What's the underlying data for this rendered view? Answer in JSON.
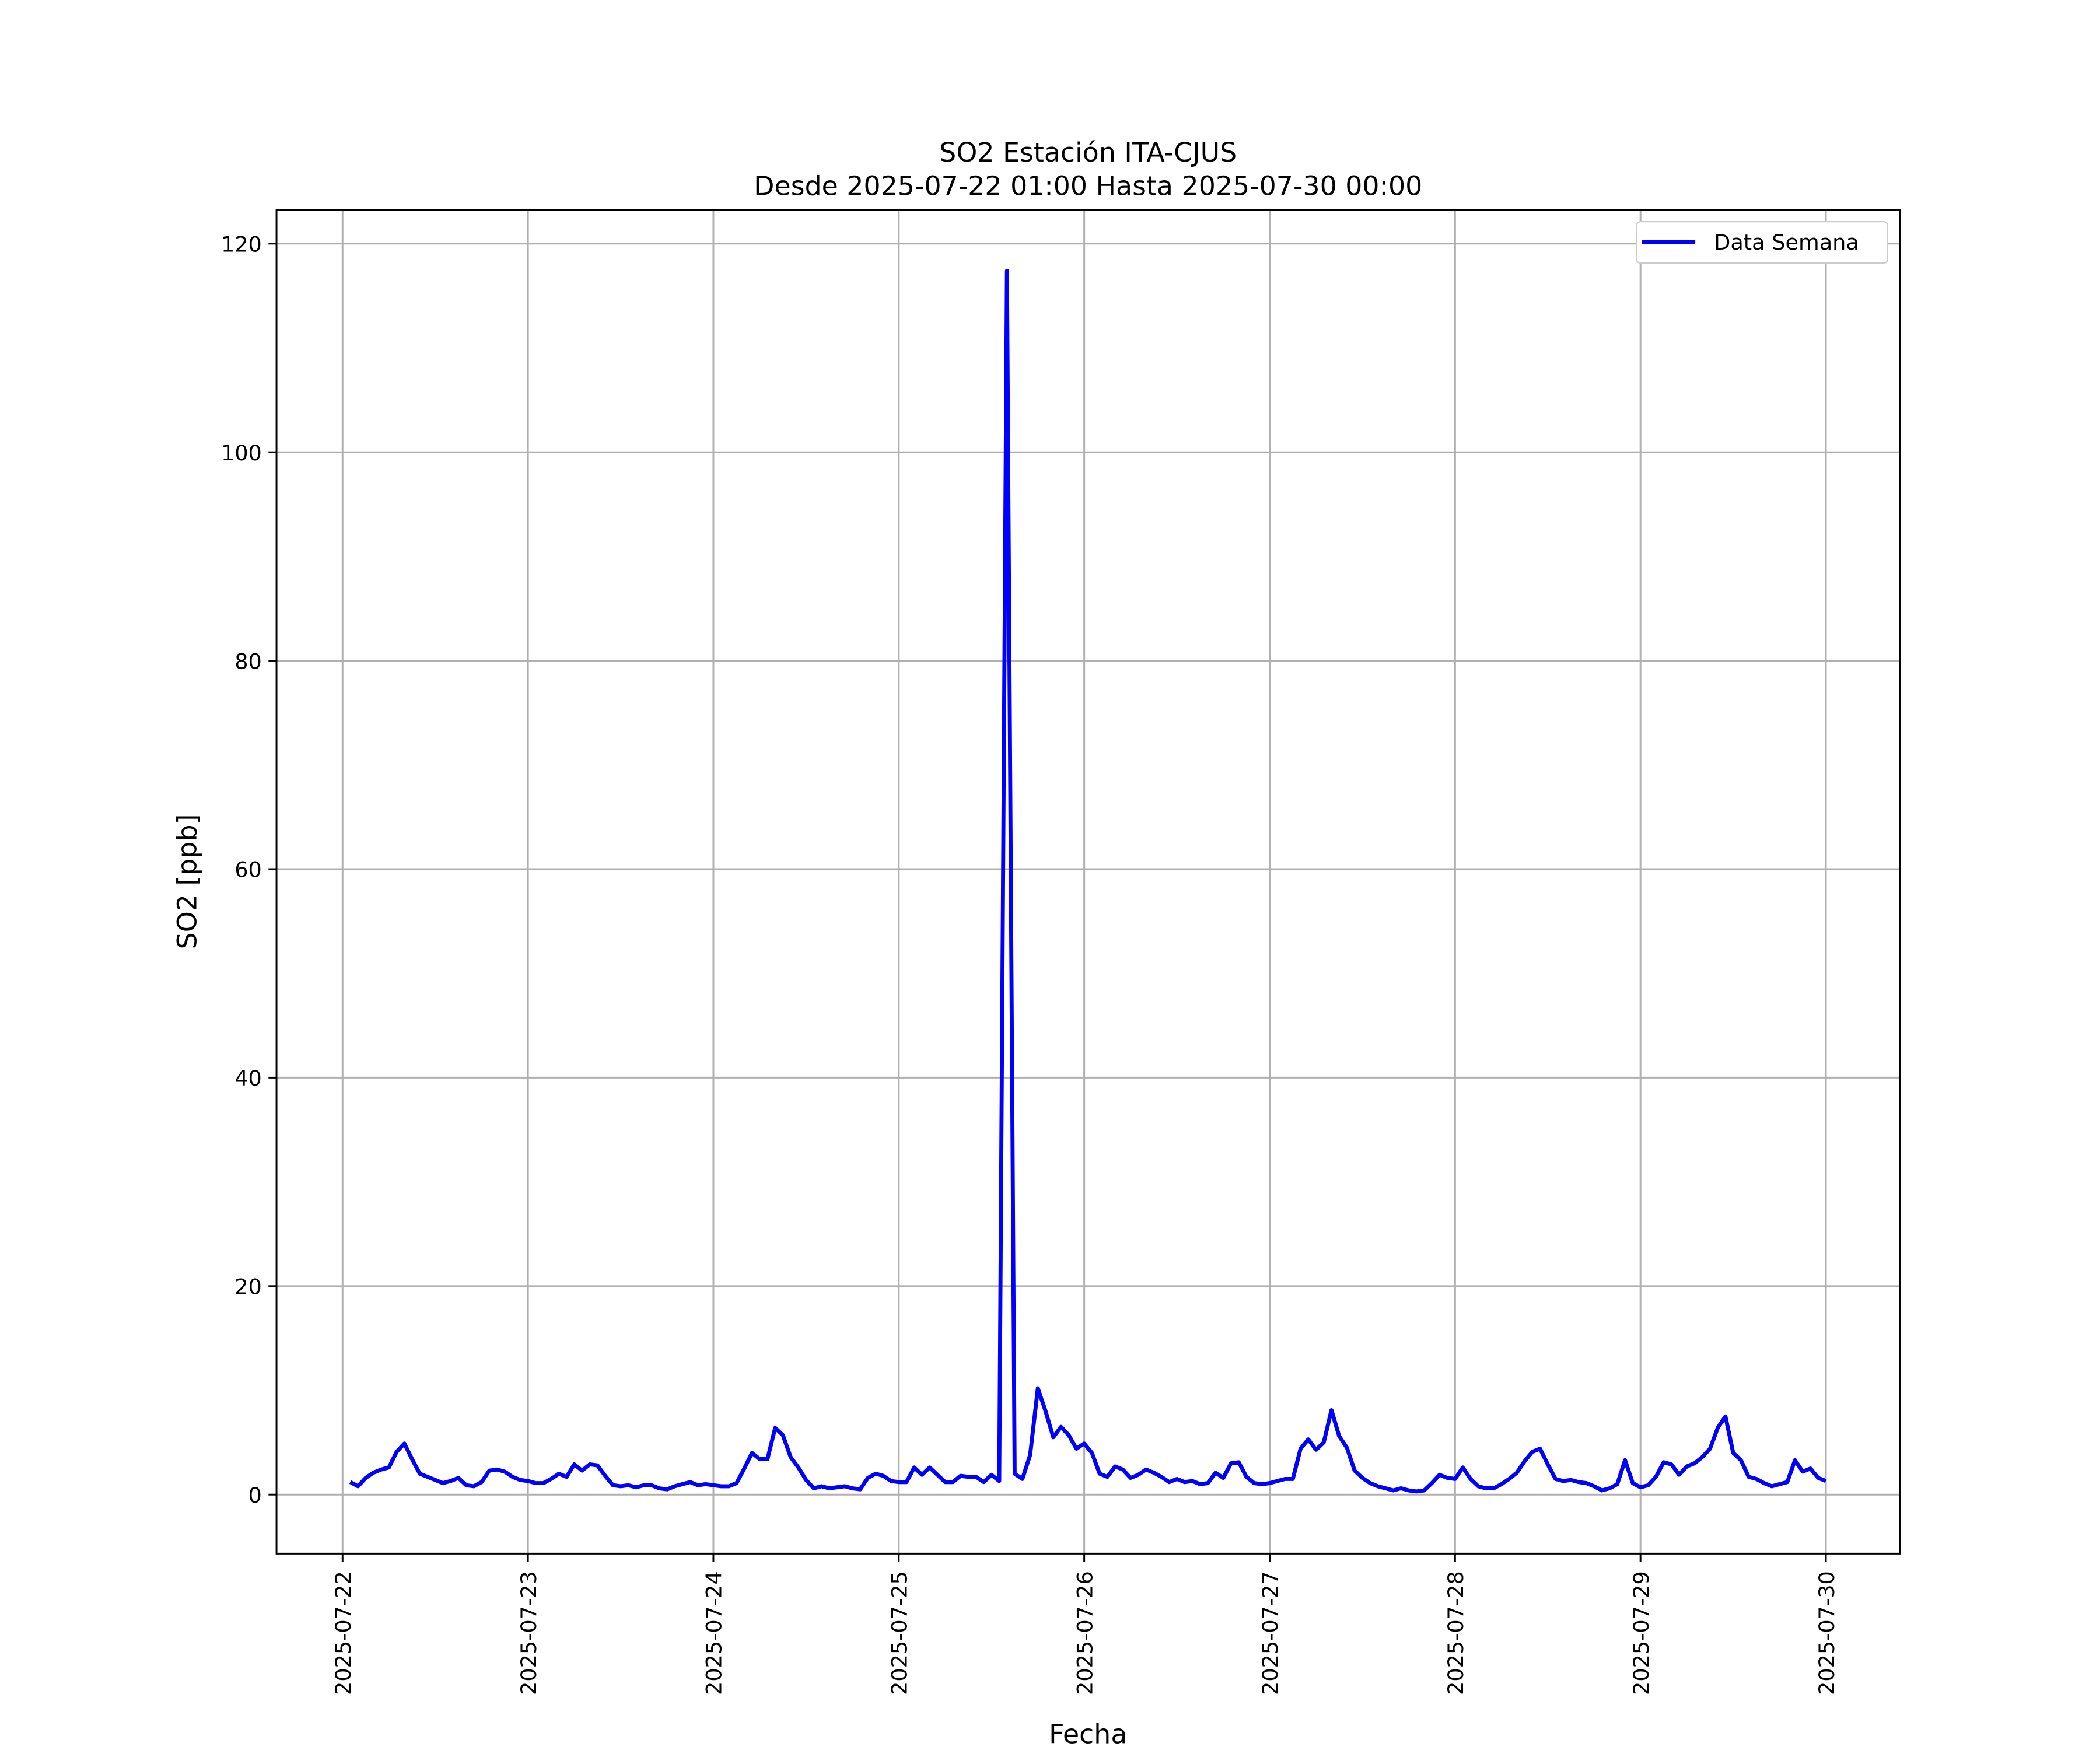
{
  "chart_data": {
    "type": "line",
    "title": "SO2 Estación ITA-CJUS",
    "subtitle": "Desde 2025-07-22 01:00 Hasta 2025-07-30 00:00",
    "x_label": "Fecha",
    "y_label": "SO2 [ppb]",
    "x": [
      "2025-07-22 01:00",
      "2025-07-22 02:00",
      "2025-07-22 03:00",
      "2025-07-22 04:00",
      "2025-07-22 05:00",
      "2025-07-22 06:00",
      "2025-07-22 07:00",
      "2025-07-22 08:00",
      "2025-07-22 09:00",
      "2025-07-22 10:00",
      "2025-07-22 11:00",
      "2025-07-22 12:00",
      "2025-07-22 13:00",
      "2025-07-22 14:00",
      "2025-07-22 15:00",
      "2025-07-22 16:00",
      "2025-07-22 17:00",
      "2025-07-22 18:00",
      "2025-07-22 19:00",
      "2025-07-22 20:00",
      "2025-07-22 21:00",
      "2025-07-22 22:00",
      "2025-07-22 23:00",
      "2025-07-23 00:00",
      "2025-07-23 01:00",
      "2025-07-23 02:00",
      "2025-07-23 03:00",
      "2025-07-23 04:00",
      "2025-07-23 05:00",
      "2025-07-23 06:00",
      "2025-07-23 07:00",
      "2025-07-23 08:00",
      "2025-07-23 09:00",
      "2025-07-23 10:00",
      "2025-07-23 11:00",
      "2025-07-23 12:00",
      "2025-07-23 13:00",
      "2025-07-23 14:00",
      "2025-07-23 15:00",
      "2025-07-23 16:00",
      "2025-07-23 17:00",
      "2025-07-23 18:00",
      "2025-07-23 19:00",
      "2025-07-23 20:00",
      "2025-07-23 21:00",
      "2025-07-23 22:00",
      "2025-07-23 23:00",
      "2025-07-24 00:00",
      "2025-07-24 01:00",
      "2025-07-24 02:00",
      "2025-07-24 03:00",
      "2025-07-24 04:00",
      "2025-07-24 05:00",
      "2025-07-24 06:00",
      "2025-07-24 07:00",
      "2025-07-24 08:00",
      "2025-07-24 09:00",
      "2025-07-24 10:00",
      "2025-07-24 11:00",
      "2025-07-24 12:00",
      "2025-07-24 13:00",
      "2025-07-24 14:00",
      "2025-07-24 15:00",
      "2025-07-24 16:00",
      "2025-07-24 17:00",
      "2025-07-24 18:00",
      "2025-07-24 19:00",
      "2025-07-24 20:00",
      "2025-07-24 21:00",
      "2025-07-24 22:00",
      "2025-07-24 23:00",
      "2025-07-25 00:00",
      "2025-07-25 01:00",
      "2025-07-25 02:00",
      "2025-07-25 03:00",
      "2025-07-25 04:00",
      "2025-07-25 05:00",
      "2025-07-25 06:00",
      "2025-07-25 07:00",
      "2025-07-25 08:00",
      "2025-07-25 09:00",
      "2025-07-25 10:00",
      "2025-07-25 11:00",
      "2025-07-25 12:00",
      "2025-07-25 13:00",
      "2025-07-25 14:00",
      "2025-07-25 15:00",
      "2025-07-25 16:00",
      "2025-07-25 17:00",
      "2025-07-25 18:00",
      "2025-07-25 19:00",
      "2025-07-25 20:00",
      "2025-07-25 21:00",
      "2025-07-25 22:00",
      "2025-07-25 23:00",
      "2025-07-26 00:00",
      "2025-07-26 01:00",
      "2025-07-26 02:00",
      "2025-07-26 03:00",
      "2025-07-26 04:00",
      "2025-07-26 05:00",
      "2025-07-26 06:00",
      "2025-07-26 07:00",
      "2025-07-26 08:00",
      "2025-07-26 09:00",
      "2025-07-26 10:00",
      "2025-07-26 11:00",
      "2025-07-26 12:00",
      "2025-07-26 13:00",
      "2025-07-26 14:00",
      "2025-07-26 15:00",
      "2025-07-26 16:00",
      "2025-07-26 17:00",
      "2025-07-26 18:00",
      "2025-07-26 19:00",
      "2025-07-26 20:00",
      "2025-07-26 21:00",
      "2025-07-26 22:00",
      "2025-07-26 23:00",
      "2025-07-27 00:00",
      "2025-07-27 01:00",
      "2025-07-27 02:00",
      "2025-07-27 03:00",
      "2025-07-27 04:00",
      "2025-07-27 05:00",
      "2025-07-27 06:00",
      "2025-07-27 07:00",
      "2025-07-27 08:00",
      "2025-07-27 09:00",
      "2025-07-27 10:00",
      "2025-07-27 11:00",
      "2025-07-27 12:00",
      "2025-07-27 13:00",
      "2025-07-27 14:00",
      "2025-07-27 15:00",
      "2025-07-27 16:00",
      "2025-07-27 17:00",
      "2025-07-27 18:00",
      "2025-07-27 19:00",
      "2025-07-27 20:00",
      "2025-07-27 21:00",
      "2025-07-27 22:00",
      "2025-07-27 23:00",
      "2025-07-28 00:00",
      "2025-07-28 01:00",
      "2025-07-28 02:00",
      "2025-07-28 03:00",
      "2025-07-28 04:00",
      "2025-07-28 05:00",
      "2025-07-28 06:00",
      "2025-07-28 07:00",
      "2025-07-28 08:00",
      "2025-07-28 09:00",
      "2025-07-28 10:00",
      "2025-07-28 11:00",
      "2025-07-28 12:00",
      "2025-07-28 13:00",
      "2025-07-28 14:00",
      "2025-07-28 15:00",
      "2025-07-28 16:00",
      "2025-07-28 17:00",
      "2025-07-28 18:00",
      "2025-07-28 19:00",
      "2025-07-28 20:00",
      "2025-07-28 21:00",
      "2025-07-28 22:00",
      "2025-07-28 23:00",
      "2025-07-29 00:00",
      "2025-07-29 01:00",
      "2025-07-29 02:00",
      "2025-07-29 03:00",
      "2025-07-29 04:00",
      "2025-07-29 05:00",
      "2025-07-29 06:00",
      "2025-07-29 07:00",
      "2025-07-29 08:00",
      "2025-07-29 09:00",
      "2025-07-29 10:00",
      "2025-07-29 11:00",
      "2025-07-29 12:00",
      "2025-07-29 13:00",
      "2025-07-29 14:00",
      "2025-07-29 15:00",
      "2025-07-29 16:00",
      "2025-07-29 17:00",
      "2025-07-29 18:00",
      "2025-07-29 19:00",
      "2025-07-29 20:00",
      "2025-07-29 21:00",
      "2025-07-29 22:00",
      "2025-07-29 23:00",
      "2025-07-30 00:00"
    ],
    "series": [
      {
        "name": "Data Semana",
        "color": "#0000ff",
        "values": [
          1.2,
          0.8,
          1.6,
          2.1,
          2.4,
          2.6,
          4.1,
          4.9,
          3.4,
          2.0,
          1.7,
          1.4,
          1.1,
          1.3,
          1.6,
          0.9,
          0.8,
          1.2,
          2.3,
          2.4,
          2.2,
          1.7,
          1.4,
          1.3,
          1.1,
          1.1,
          1.5,
          2.0,
          1.7,
          2.9,
          2.3,
          2.9,
          2.8,
          1.8,
          0.9,
          0.8,
          0.9,
          0.7,
          0.9,
          0.9,
          0.6,
          0.5,
          0.8,
          1.0,
          1.2,
          0.9,
          1.0,
          0.9,
          0.8,
          0.8,
          1.1,
          2.5,
          4.0,
          3.4,
          3.4,
          6.4,
          5.7,
          3.6,
          2.6,
          1.4,
          0.6,
          0.8,
          0.6,
          0.7,
          0.8,
          0.6,
          0.5,
          1.6,
          2.0,
          1.8,
          1.3,
          1.2,
          1.2,
          2.6,
          1.9,
          2.6,
          1.9,
          1.2,
          1.2,
          1.8,
          1.7,
          1.7,
          1.2,
          1.9,
          1.3,
          117.4,
          2.0,
          1.5,
          3.8,
          10.2,
          8.0,
          5.5,
          6.5,
          5.7,
          4.4,
          4.9,
          4.0,
          2.0,
          1.7,
          2.7,
          2.4,
          1.6,
          1.9,
          2.4,
          2.1,
          1.7,
          1.2,
          1.5,
          1.2,
          1.3,
          1.0,
          1.1,
          2.1,
          1.6,
          3.0,
          3.1,
          1.7,
          1.1,
          1.0,
          1.1,
          1.3,
          1.5,
          1.5,
          4.4,
          5.3,
          4.3,
          5.0,
          8.1,
          5.6,
          4.5,
          2.3,
          1.6,
          1.1,
          0.8,
          0.6,
          0.4,
          0.6,
          0.4,
          0.3,
          0.4,
          1.1,
          1.9,
          1.6,
          1.5,
          2.6,
          1.5,
          0.8,
          0.6,
          0.6,
          1.0,
          1.5,
          2.1,
          3.2,
          4.1,
          4.4,
          2.9,
          1.5,
          1.3,
          1.4,
          1.2,
          1.1,
          0.8,
          0.4,
          0.6,
          1.0,
          3.3,
          1.1,
          0.7,
          0.9,
          1.7,
          3.1,
          2.9,
          1.9,
          2.7,
          3.0,
          3.6,
          4.4,
          6.4,
          7.5,
          4.0,
          3.3,
          1.7,
          1.5,
          1.1,
          0.8,
          1.0,
          1.2,
          3.3,
          2.2,
          2.5,
          1.6,
          1.3
        ]
      }
    ],
    "xlim": [
      "2025-07-21 15:27",
      "2025-07-30 09:33"
    ],
    "xticks": [
      "2025-07-22",
      "2025-07-23",
      "2025-07-24",
      "2025-07-25",
      "2025-07-26",
      "2025-07-27",
      "2025-07-28",
      "2025-07-29",
      "2025-07-30"
    ],
    "ylim": [
      -5.66,
      123.26
    ],
    "yticks": [
      0,
      20,
      40,
      60,
      80,
      100,
      120
    ],
    "grid": true,
    "legend": "upper right"
  }
}
